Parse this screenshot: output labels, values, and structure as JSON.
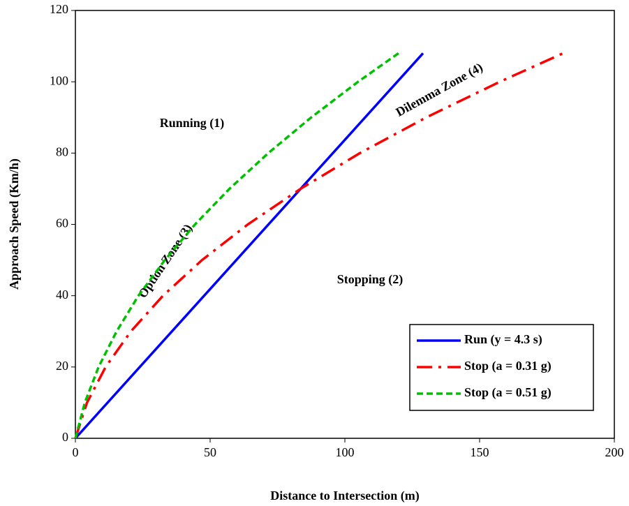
{
  "chart_data": {
    "type": "line",
    "x_label": "Distance to Intersection (m)",
    "y_label": "Approach Speed (Km/h)",
    "xlim": [
      0,
      200
    ],
    "xticks": [
      0,
      50,
      100,
      150,
      200
    ],
    "ylim": [
      0,
      120
    ],
    "yticks": [
      0,
      20,
      40,
      60,
      80,
      100,
      120
    ],
    "grid": false,
    "legend": "lower right",
    "series": [
      {
        "name": "Run (y = 4.3 s)",
        "color": "#0000ff",
        "style": "solid",
        "x": [
          0,
          129
        ],
        "values": [
          0,
          108
        ]
      },
      {
        "name": "Stop (a = 0.31 g)",
        "color": "#ff0000",
        "style": "dashdot",
        "x": [
          0,
          4.3,
          11.2,
          20.6,
          32.5,
          47.0,
          64.0,
          83.6,
          105.6,
          130.2,
          157.5,
          181
        ],
        "values": [
          0,
          10,
          20,
          30,
          40,
          50,
          60,
          70,
          80,
          90,
          100,
          108
        ]
      },
      {
        "name": "Stop (a = 0.51 g)",
        "color": "#00c000",
        "style": "dashed",
        "x": [
          0,
          3.5,
          8.6,
          15.3,
          23.4,
          33.2,
          44.4,
          57.2,
          71.6,
          87.5,
          104.9,
          119.9
        ],
        "values": [
          0,
          10,
          20,
          30,
          40,
          50,
          60,
          70,
          80,
          90,
          100,
          108
        ]
      }
    ],
    "annotations": [
      "Running (1)",
      "Stopping (2)",
      "Option Zone (3)",
      "Dilemma Zone (4)"
    ]
  }
}
